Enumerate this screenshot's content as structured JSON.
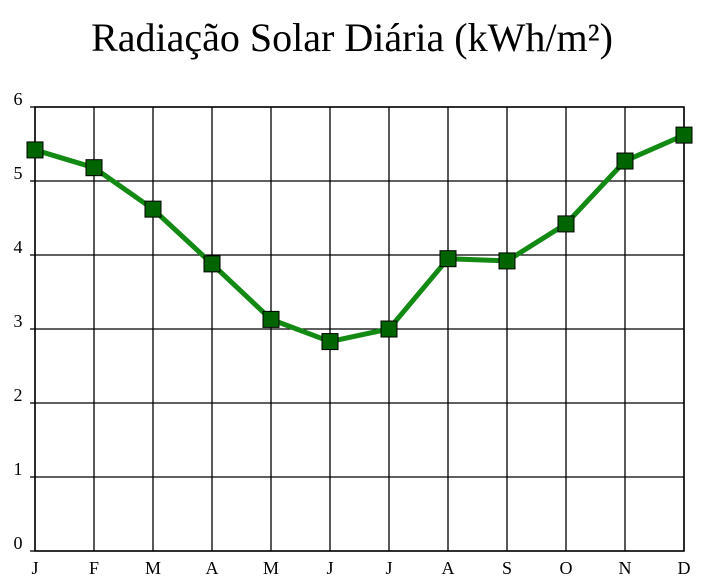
{
  "chart_data": {
    "type": "line",
    "title": "Radiação Solar Diária  (kWh/m²)",
    "categories": [
      "J",
      "F",
      "M",
      "A",
      "M",
      "J",
      "J",
      "A",
      "S",
      "O",
      "N",
      "D"
    ],
    "series": [
      {
        "name": "Radiação",
        "color": "#138a13",
        "marker_color": "#006400",
        "values": [
          5.42,
          5.18,
          4.62,
          3.88,
          3.13,
          2.83,
          3.0,
          3.95,
          3.92,
          4.42,
          5.27,
          5.62
        ]
      }
    ],
    "ylim": [
      0,
      6
    ],
    "yticks": [
      0,
      1,
      2,
      3,
      4,
      5,
      6
    ],
    "grid": true
  }
}
